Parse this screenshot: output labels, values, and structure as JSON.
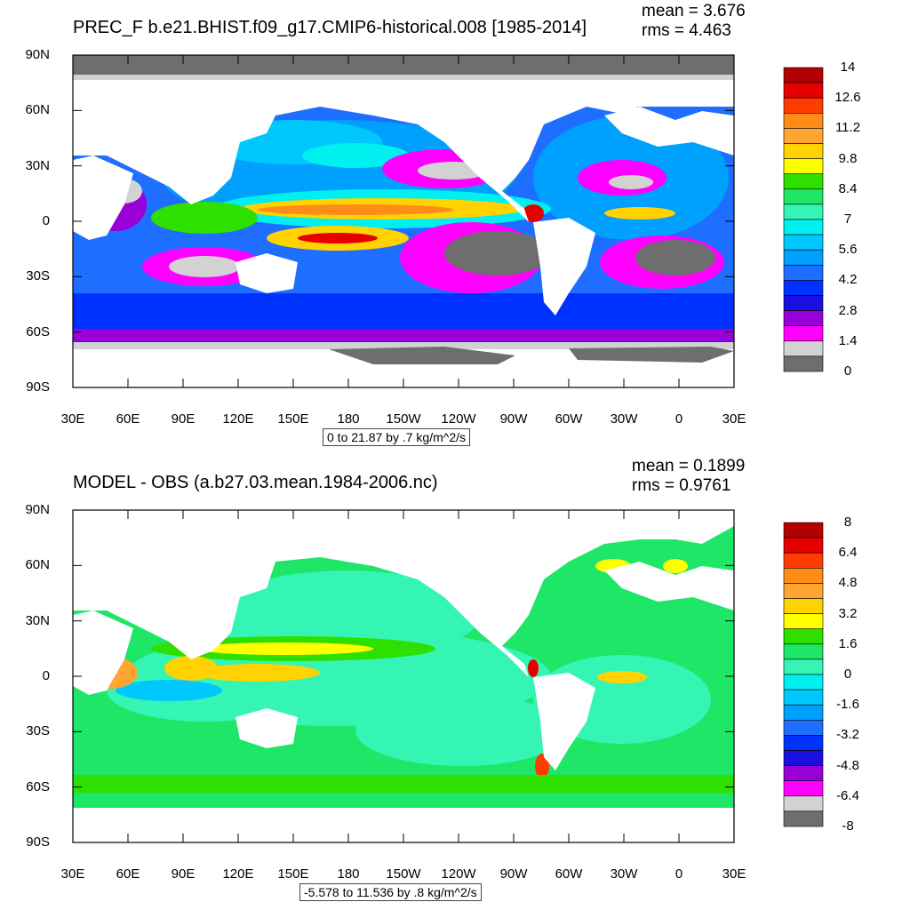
{
  "chart_data": [
    {
      "type": "heatmap",
      "title": "PREC_F b.e21.BHIST.f09_g17.CMIP6-historical.008 [1985-2014]",
      "stats": {
        "mean": "mean = 3.676",
        "rms": "rms = 4.463"
      },
      "x_ticks": [
        "30E",
        "60E",
        "90E",
        "120E",
        "150E",
        "180",
        "150W",
        "120W",
        "90W",
        "60W",
        "30W",
        "0",
        "30E"
      ],
      "y_ticks": [
        "90N",
        "60N",
        "30N",
        "0",
        "30S",
        "60S",
        "90S"
      ],
      "range_label": "0 to 21.87 by .7 kg/m^2/s",
      "colorbar": {
        "labels": [
          "14",
          "12.6",
          "11.2",
          "9.8",
          "8.4",
          "7",
          "5.6",
          "4.2",
          "2.8",
          "1.4",
          "0"
        ],
        "colors": [
          "#b40000",
          "#e60000",
          "#ff3c00",
          "#ff8c19",
          "#ffa532",
          "#ffd200",
          "#ffff00",
          "#2fdf00",
          "#1ee666",
          "#35f5b5",
          "#00f0f0",
          "#00c8ff",
          "#00a0ff",
          "#1e6eff",
          "#0032ff",
          "#1a0fe0",
          "#9900d8",
          "#ff00ff",
          "#d2d2d2",
          "#6e6e6e"
        ]
      },
      "background": "#1432ff"
    },
    {
      "type": "heatmap",
      "title": "MODEL - OBS (a.b27.03.mean.1984-2006.nc)",
      "stats": {
        "mean": "mean = 0.1899",
        "rms": "rms = 0.9761"
      },
      "x_ticks": [
        "30E",
        "60E",
        "90E",
        "120E",
        "150E",
        "180",
        "150W",
        "120W",
        "90W",
        "60W",
        "30W",
        "0",
        "30E"
      ],
      "y_ticks": [
        "90N",
        "60N",
        "30N",
        "0",
        "30S",
        "60S",
        "90S"
      ],
      "range_label": "-5.578 to 11.536 by .8 kg/m^2/s",
      "colorbar": {
        "labels": [
          "8",
          "6.4",
          "4.8",
          "3.2",
          "1.6",
          "0",
          "-1.6",
          "-3.2",
          "-4.8",
          "-6.4",
          "-8"
        ],
        "colors": [
          "#b40000",
          "#e60000",
          "#ff3c00",
          "#ff8c19",
          "#ffa532",
          "#ffd200",
          "#ffff00",
          "#2fdf00",
          "#1ee666",
          "#35f5b5",
          "#00f0f0",
          "#00c8ff",
          "#00a0ff",
          "#1e6eff",
          "#0032ff",
          "#1a0fe0",
          "#9900d8",
          "#ff00ff",
          "#d2d2d2",
          "#6e6e6e"
        ]
      },
      "background": "#1ee666"
    }
  ]
}
